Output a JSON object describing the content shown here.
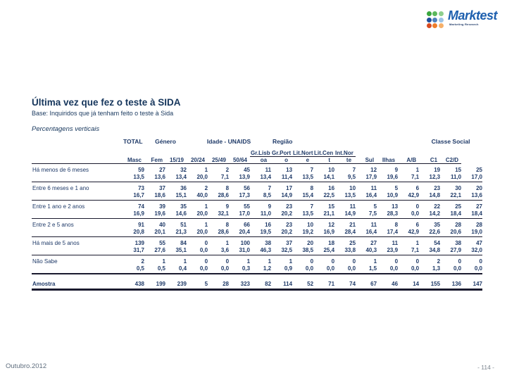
{
  "logo": {
    "brand": "Marktest",
    "tagline": "Marketing Research",
    "dot_colors": [
      [
        "#3aa63f",
        "#5cb85c",
        "#8ecf8e"
      ],
      [
        "#1f4e9c",
        "#4f81bd",
        "#9dc3e6"
      ],
      [
        "#d84b20",
        "#ef7d2a",
        "#f5b06a"
      ]
    ]
  },
  "header": {
    "title": "Última vez que fez o teste à SIDA",
    "base": "Base: Inquiridos que já tenham feito o teste à Sida",
    "note": "Percentagens verticais"
  },
  "table": {
    "groups": [
      {
        "label": "TOTAL",
        "span": 1,
        "align": "right"
      },
      {
        "label": "Género",
        "span": 2,
        "align": "center"
      },
      {
        "label": "Idade - UNAIDS",
        "span": 4,
        "align": "center"
      },
      {
        "label": "Região",
        "span": 7,
        "align": "left"
      },
      {
        "label": "Classe Social",
        "span": 3,
        "align": "center"
      }
    ],
    "columns": [
      {
        "sub": ""
      },
      {
        "sub": "Masc"
      },
      {
        "sub": "Fem"
      },
      {
        "sub": "15/19"
      },
      {
        "sub": "20/24"
      },
      {
        "sub": "25/49"
      },
      {
        "sub": "50/64"
      },
      {
        "line1": "Gr.Lisb",
        "line2": "oa"
      },
      {
        "line1": "Gr.Port",
        "line2": "o"
      },
      {
        "line1": "Lit.Nort",
        "line2": "e"
      },
      {
        "line1": "Lit.Cen",
        "line2": "t"
      },
      {
        "line1": "Int.Nor",
        "line2": "te"
      },
      {
        "sub": "Sul"
      },
      {
        "sub": "Ilhas"
      },
      {
        "sub": "A/B"
      },
      {
        "sub": "C1"
      },
      {
        "sub": "C2/D"
      }
    ],
    "rows": [
      {
        "label": "Há menos de 6 meses",
        "counts": [
          "59",
          "27",
          "32",
          "1",
          "2",
          "45",
          "11",
          "13",
          "7",
          "10",
          "7",
          "12",
          "9",
          "1",
          "19",
          "15",
          "25"
        ],
        "pcts": [
          "13,5",
          "13,6",
          "13,4",
          "20,0",
          "7,1",
          "13,9",
          "13,4",
          "11,4",
          "13,5",
          "14,1",
          "9,5",
          "17,9",
          "19,6",
          "7,1",
          "12,3",
          "11,0",
          "17,0"
        ]
      },
      {
        "label": "Entre 6 meses e 1 ano",
        "counts": [
          "73",
          "37",
          "36",
          "2",
          "8",
          "56",
          "7",
          "17",
          "8",
          "16",
          "10",
          "11",
          "5",
          "6",
          "23",
          "30",
          "20"
        ],
        "pcts": [
          "16,7",
          "18,6",
          "15,1",
          "40,0",
          "28,6",
          "17,3",
          "8,5",
          "14,9",
          "15,4",
          "22,5",
          "13,5",
          "16,4",
          "10,9",
          "42,9",
          "14,8",
          "22,1",
          "13,6"
        ]
      },
      {
        "label": "Entre 1 ano e 2 anos",
        "counts": [
          "74",
          "39",
          "35",
          "1",
          "9",
          "55",
          "9",
          "23",
          "7",
          "15",
          "11",
          "5",
          "13",
          "0",
          "22",
          "25",
          "27"
        ],
        "pcts": [
          "16,9",
          "19,6",
          "14,6",
          "20,0",
          "32,1",
          "17,0",
          "11,0",
          "20,2",
          "13,5",
          "21,1",
          "14,9",
          "7,5",
          "28,3",
          "0,0",
          "14,2",
          "18,4",
          "18,4"
        ]
      },
      {
        "label": "Entre 2 e 5 anos",
        "counts": [
          "91",
          "40",
          "51",
          "1",
          "8",
          "66",
          "16",
          "23",
          "10",
          "12",
          "21",
          "11",
          "8",
          "6",
          "35",
          "28",
          "28"
        ],
        "pcts": [
          "20,8",
          "20,1",
          "21,3",
          "20,0",
          "28,6",
          "20,4",
          "19,5",
          "20,2",
          "19,2",
          "16,9",
          "28,4",
          "16,4",
          "17,4",
          "42,9",
          "22,6",
          "20,6",
          "19,0"
        ]
      },
      {
        "label": "Há mais de 5 anos",
        "counts": [
          "139",
          "55",
          "84",
          "0",
          "1",
          "100",
          "38",
          "37",
          "20",
          "18",
          "25",
          "27",
          "11",
          "1",
          "54",
          "38",
          "47"
        ],
        "pcts": [
          "31,7",
          "27,6",
          "35,1",
          "0,0",
          "3,6",
          "31,0",
          "46,3",
          "32,5",
          "38,5",
          "25,4",
          "33,8",
          "40,3",
          "23,9",
          "7,1",
          "34,8",
          "27,9",
          "32,0"
        ]
      },
      {
        "label": "Não Sabe",
        "counts": [
          "2",
          "1",
          "1",
          "0",
          "0",
          "1",
          "1",
          "1",
          "0",
          "0",
          "0",
          "1",
          "0",
          "0",
          "2",
          "0",
          "0"
        ],
        "pcts": [
          "0,5",
          "0,5",
          "0,4",
          "0,0",
          "0,0",
          "0,3",
          "1,2",
          "0,9",
          "0,0",
          "0,0",
          "0,0",
          "1,5",
          "0,0",
          "0,0",
          "1,3",
          "0,0",
          "0,0"
        ]
      }
    ],
    "sample_row": {
      "label": "Amostra",
      "values": [
        "438",
        "199",
        "239",
        "5",
        "28",
        "323",
        "82",
        "114",
        "52",
        "71",
        "74",
        "67",
        "46",
        "14",
        "155",
        "136",
        "147"
      ]
    }
  },
  "footer": {
    "date": "Outubro.2012",
    "page": "- 114 -"
  }
}
